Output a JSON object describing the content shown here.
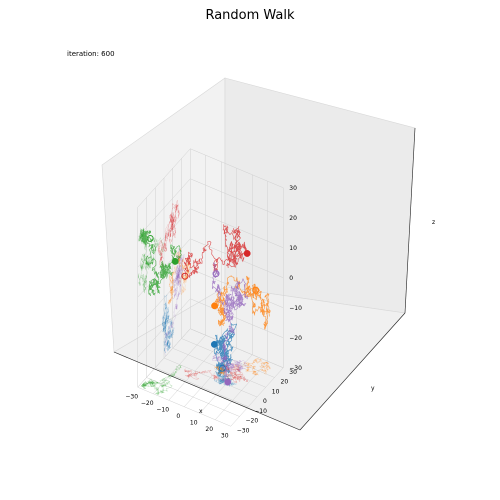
{
  "chart_data": {
    "type": "line",
    "projection": "3d",
    "title": "Random Walk",
    "annotation": "iteration: 600",
    "xlabel": "x",
    "ylabel": "y",
    "zlabel": "z",
    "xlim": [
      -30,
      30
    ],
    "ylim": [
      -30,
      30
    ],
    "zlim": [
      -30,
      30
    ],
    "x_ticks": [
      "−30",
      "−20",
      "−10",
      "0",
      "10",
      "20",
      "30"
    ],
    "y_ticks": [
      "−30",
      "−20",
      "−10",
      "0",
      "10",
      "20",
      "30"
    ],
    "z_ticks": [
      "−30",
      "−20",
      "−10",
      "0",
      "10",
      "20",
      "30"
    ],
    "grid": true,
    "series": [
      {
        "color": "#1f77b4",
        "marker": [
          -2,
          8,
          -22
        ],
        "shadow": "projected walk on floor and walls"
      },
      {
        "color": "#ff7f0e",
        "marker": [
          -3,
          10,
          -10
        ],
        "shadow": "projected walk on floor and walls"
      },
      {
        "color": "#2ca02c",
        "marker": [
          -20,
          -5,
          6
        ],
        "shadow": "projected walk on floor and walls"
      },
      {
        "color": "#d62728",
        "marker": [
          18,
          10,
          12
        ],
        "shadow": "projected walk on floor and walls"
      },
      {
        "color": "#9467bd",
        "marker": [
          10,
          2,
          -30
        ],
        "shadow": "projected walk on floor and walls"
      }
    ]
  }
}
